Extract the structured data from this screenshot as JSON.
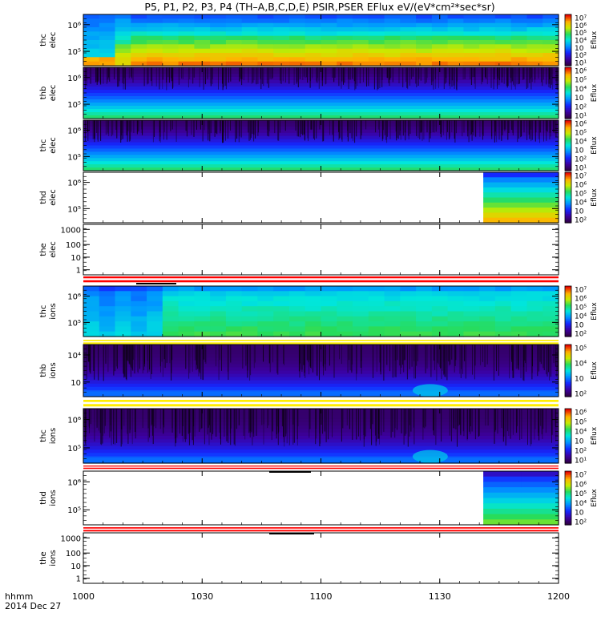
{
  "title": "P5, P1, P2, P3, P4 (TH–A,B,C,D,E) PSIR,PSER EFlux eV/(eV*cm²*sec*sr)",
  "x_axis": {
    "label_line1": "hhmm",
    "label_line2": "2014 Dec 27",
    "ticks": [
      "1000",
      "1030",
      "1100",
      "1130",
      "1200"
    ]
  },
  "colorbar_label": "Eflux",
  "chart_data": [
    {
      "type": "heatmap",
      "panel": "thc elec",
      "ylabel": [
        "thc",
        "elec"
      ],
      "yticks": [
        "10⁶",
        "10⁵"
      ],
      "colorbar_ticks": [
        "10⁷",
        "10⁶",
        "10⁵",
        "10⁴",
        "10⁳",
        "10²",
        "10¹"
      ],
      "regime": "electron-hot"
    },
    {
      "type": "heatmap",
      "panel": "thb elec",
      "ylabel": [
        "thb",
        "elec"
      ],
      "yticks": [
        "10⁶",
        "10⁵"
      ],
      "colorbar_ticks": [
        "10⁶",
        "10⁵",
        "10⁴",
        "10⁳",
        "10²",
        "10¹"
      ],
      "regime": "noisy-e"
    },
    {
      "type": "heatmap",
      "panel": "thc elec",
      "ylabel": [
        "thc",
        "elec"
      ],
      "yticks": [
        "10⁶",
        "10⁵"
      ],
      "colorbar_ticks": [
        "10⁶",
        "10⁵",
        "10⁴",
        "10⁳",
        "10²",
        "10¹"
      ],
      "regime": "noisy-e"
    },
    {
      "type": "heatmap",
      "panel": "thd elec",
      "ylabel": [
        "thd",
        "elec"
      ],
      "yticks": [
        "10⁶",
        "10⁵"
      ],
      "colorbar_ticks": [
        "10⁷",
        "10⁶",
        "10⁵",
        "10⁴",
        "10⁳",
        "10²"
      ],
      "regime": "late-hot",
      "data_start": "1141"
    },
    {
      "type": "heatmap",
      "panel": "the elec",
      "ylabel": [
        "the",
        "elec"
      ],
      "yticks": [
        "1000",
        "100",
        "10",
        "1"
      ],
      "colorbar_ticks": [],
      "regime": "empty"
    },
    {
      "type": "heatmap",
      "panel": "thc ions",
      "ylabel": [
        "thc",
        "ions"
      ],
      "yticks": [
        "10⁶",
        "10⁵"
      ],
      "colorbar_ticks": [
        "10⁷",
        "10⁶",
        "10⁵",
        "10⁴",
        "10⁳",
        "10²"
      ],
      "regime": "ion-green"
    },
    {
      "type": "heatmap",
      "panel": "thb ions",
      "ylabel": [
        "thb",
        "ions"
      ],
      "yticks": [
        "10⁴",
        "10⁳"
      ],
      "colorbar_ticks": [
        "10⁵",
        "10⁴",
        "10⁳",
        "10²"
      ],
      "regime": "noisy-i"
    },
    {
      "type": "heatmap",
      "panel": "thc ions",
      "ylabel": [
        "thc",
        "ions"
      ],
      "yticks": [
        "10⁶",
        "10⁵"
      ],
      "colorbar_ticks": [
        "10⁶",
        "10⁵",
        "10⁴",
        "10⁳",
        "10²",
        "10¹"
      ],
      "regime": "noisy-i"
    },
    {
      "type": "heatmap",
      "panel": "thd ions",
      "ylabel": [
        "thd",
        "ions"
      ],
      "yticks": [
        "10⁶",
        "10⁵"
      ],
      "colorbar_ticks": [
        "10⁷",
        "10⁶",
        "10⁵",
        "10⁴",
        "10⁳",
        "10²"
      ],
      "regime": "late-blue",
      "data_start": "1141"
    },
    {
      "type": "heatmap",
      "panel": "the ions",
      "ylabel": [
        "the",
        "ions"
      ],
      "yticks": [
        "1000",
        "100",
        "10",
        "1"
      ],
      "colorbar_ticks": [],
      "regime": "empty"
    }
  ]
}
